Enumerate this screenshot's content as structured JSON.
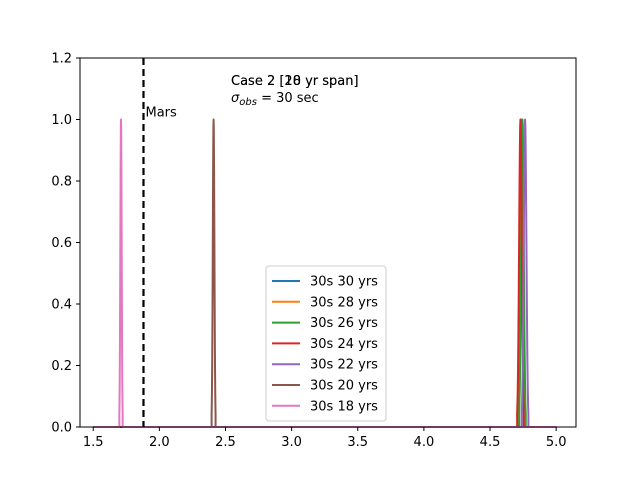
{
  "chart_data": {
    "type": "line",
    "title": "",
    "xlabel": "",
    "ylabel": "",
    "xlim": [
      1.4,
      5.15
    ],
    "ylim": [
      0.0,
      1.2
    ],
    "xticks": [
      1.5,
      2.0,
      2.5,
      3.0,
      3.5,
      4.0,
      4.5,
      5.0
    ],
    "xtick_labels": [
      "1.5",
      "2.0",
      "2.5",
      "3.0",
      "3.5",
      "4.0",
      "4.5",
      "5.0"
    ],
    "yticks": [
      0.0,
      0.2,
      0.4,
      0.6,
      0.8,
      1.0,
      1.2
    ],
    "ytick_labels": [
      "0.0",
      "0.2",
      "0.4",
      "0.6",
      "0.8",
      "1.0",
      "1.2"
    ],
    "grid": false,
    "legend_position": "bottom-center",
    "x_range": [
      1.5,
      5.0
    ],
    "reference_line": {
      "x": 1.88,
      "label": "Mars",
      "style": "dashed",
      "color": "#000000"
    },
    "annotation_lines": [
      "Case 2 [18 yr span]",
      "Case 2 [20 yr span]"
    ],
    "annotation_sigma_symbol": "σ",
    "annotation_sigma_sub": "obs",
    "annotation_sigma_rest": " = 30 sec",
    "series": [
      {
        "name": "30s 30 yrs",
        "color": "#1f77b4",
        "peak_x": 4.74,
        "width": 0.008,
        "peak_y": 1.0
      },
      {
        "name": "30s 28 yrs",
        "color": "#ff7f0e",
        "peak_x": 4.735,
        "width": 0.008,
        "peak_y": 1.0
      },
      {
        "name": "30s 26 yrs",
        "color": "#2ca02c",
        "peak_x": 4.745,
        "width": 0.01,
        "peak_y": 1.0
      },
      {
        "name": "30s 24 yrs",
        "color": "#d62728",
        "peak_x": 4.73,
        "width": 0.01,
        "peak_y": 1.0
      },
      {
        "name": "30s 22 yrs",
        "color": "#9467bd",
        "peak_x": 4.765,
        "width": 0.01,
        "peak_y": 1.0
      },
      {
        "name": "30s 20 yrs",
        "color": "#8c564b",
        "peak_x": 2.41,
        "width": 0.006,
        "peak_y": 1.0
      },
      {
        "name": "30s 18 yrs",
        "color": "#e377c2",
        "peak_x": 1.71,
        "width": 0.005,
        "peak_y": 1.0
      }
    ]
  }
}
